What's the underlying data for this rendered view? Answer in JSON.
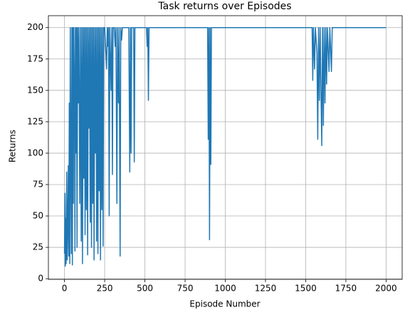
{
  "chart_data": {
    "type": "line",
    "title": "Task returns over Episodes",
    "xlabel": "Episode Number",
    "ylabel": "Returns",
    "x": [
      0,
      3,
      5,
      8,
      10,
      14,
      17,
      20,
      24,
      27,
      30,
      33,
      36,
      40,
      43,
      46,
      49,
      52,
      55,
      58,
      62,
      65,
      68,
      72,
      75,
      78,
      82,
      86,
      90,
      95,
      100,
      104,
      108,
      112,
      116,
      120,
      124,
      128,
      132,
      136,
      140,
      144,
      148,
      152,
      156,
      160,
      164,
      168,
      172,
      176,
      180,
      184,
      188,
      192,
      196,
      200,
      204,
      208,
      212,
      216,
      220,
      224,
      228,
      232,
      236,
      240,
      244,
      250,
      262,
      266,
      270,
      274,
      278,
      282,
      290,
      294,
      298,
      302,
      310,
      315,
      320,
      326,
      330,
      336,
      340,
      346,
      350,
      355,
      360,
      400,
      406,
      410,
      414,
      418,
      430,
      434,
      438,
      510,
      514,
      518,
      522,
      526,
      890,
      894,
      898,
      902,
      906,
      910,
      914,
      1540,
      1544,
      1548,
      1555,
      1560,
      1570,
      1575,
      1580,
      1585,
      1590,
      1595,
      1600,
      1605,
      1610,
      1615,
      1620,
      1625,
      1630,
      1635,
      1645,
      1650,
      1660,
      1665,
      1999
    ],
    "series": [
      {
        "name": "Returns",
        "color": "#1f77b4",
        "values": [
          20,
          68,
          10,
          48,
          12,
          85,
          15,
          35,
          90,
          18,
          140,
          12,
          200,
          80,
          20,
          200,
          11,
          200,
          60,
          200,
          150,
          22,
          200,
          100,
          200,
          25,
          200,
          140,
          200,
          60,
          200,
          30,
          200,
          12,
          200,
          80,
          200,
          35,
          200,
          55,
          200,
          19,
          200,
          120,
          200,
          45,
          200,
          25,
          200,
          60,
          200,
          15,
          200,
          100,
          200,
          30,
          200,
          20,
          200,
          70,
          200,
          15,
          200,
          55,
          200,
          26,
          200,
          200,
          167,
          200,
          185,
          200,
          50,
          200,
          150,
          200,
          83,
          200,
          200,
          185,
          200,
          60,
          200,
          140,
          200,
          18,
          200,
          190,
          200,
          200,
          85,
          200,
          100,
          200,
          200,
          93,
          200,
          200,
          185,
          200,
          142,
          200,
          200,
          111,
          200,
          31,
          200,
          91,
          200,
          200,
          158,
          200,
          167,
          200,
          180,
          111,
          200,
          142,
          200,
          150,
          106,
          200,
          122,
          200,
          140,
          200,
          155,
          200,
          165,
          200,
          165,
          200,
          200
        ]
      }
    ],
    "xlim": [
      -100,
      2100
    ],
    "ylim": [
      -0.5,
      209.5
    ],
    "xticks": [
      0,
      250,
      500,
      750,
      1000,
      1250,
      1500,
      1750,
      2000
    ],
    "yticks": [
      0,
      25,
      50,
      75,
      100,
      125,
      150,
      175,
      200
    ],
    "grid": true
  }
}
